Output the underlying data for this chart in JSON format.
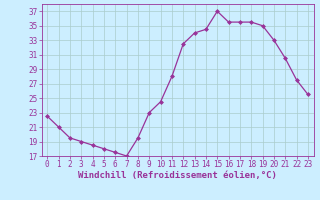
{
  "x": [
    0,
    1,
    2,
    3,
    4,
    5,
    6,
    7,
    8,
    9,
    10,
    11,
    12,
    13,
    14,
    15,
    16,
    17,
    18,
    19,
    20,
    21,
    22,
    23
  ],
  "y": [
    22.5,
    21.0,
    19.5,
    19.0,
    18.5,
    18.0,
    17.5,
    17.0,
    19.5,
    23.0,
    24.5,
    28.0,
    32.5,
    34.0,
    34.5,
    37.0,
    35.5,
    35.5,
    35.5,
    35.0,
    33.0,
    30.5,
    27.5,
    25.5
  ],
  "line_color": "#993399",
  "marker": "D",
  "marker_size": 2.0,
  "bg_color": "#cceeff",
  "grid_color": "#aacccc",
  "xlabel": "Windchill (Refroidissement éolien,°C)",
  "ylim": [
    17,
    38
  ],
  "xlim": [
    -0.5,
    23.5
  ],
  "yticks": [
    17,
    19,
    21,
    23,
    25,
    27,
    29,
    31,
    33,
    35,
    37
  ],
  "xticks": [
    0,
    1,
    2,
    3,
    4,
    5,
    6,
    7,
    8,
    9,
    10,
    11,
    12,
    13,
    14,
    15,
    16,
    17,
    18,
    19,
    20,
    21,
    22,
    23
  ],
  "tick_fontsize": 5.5,
  "xlabel_fontsize": 6.5
}
